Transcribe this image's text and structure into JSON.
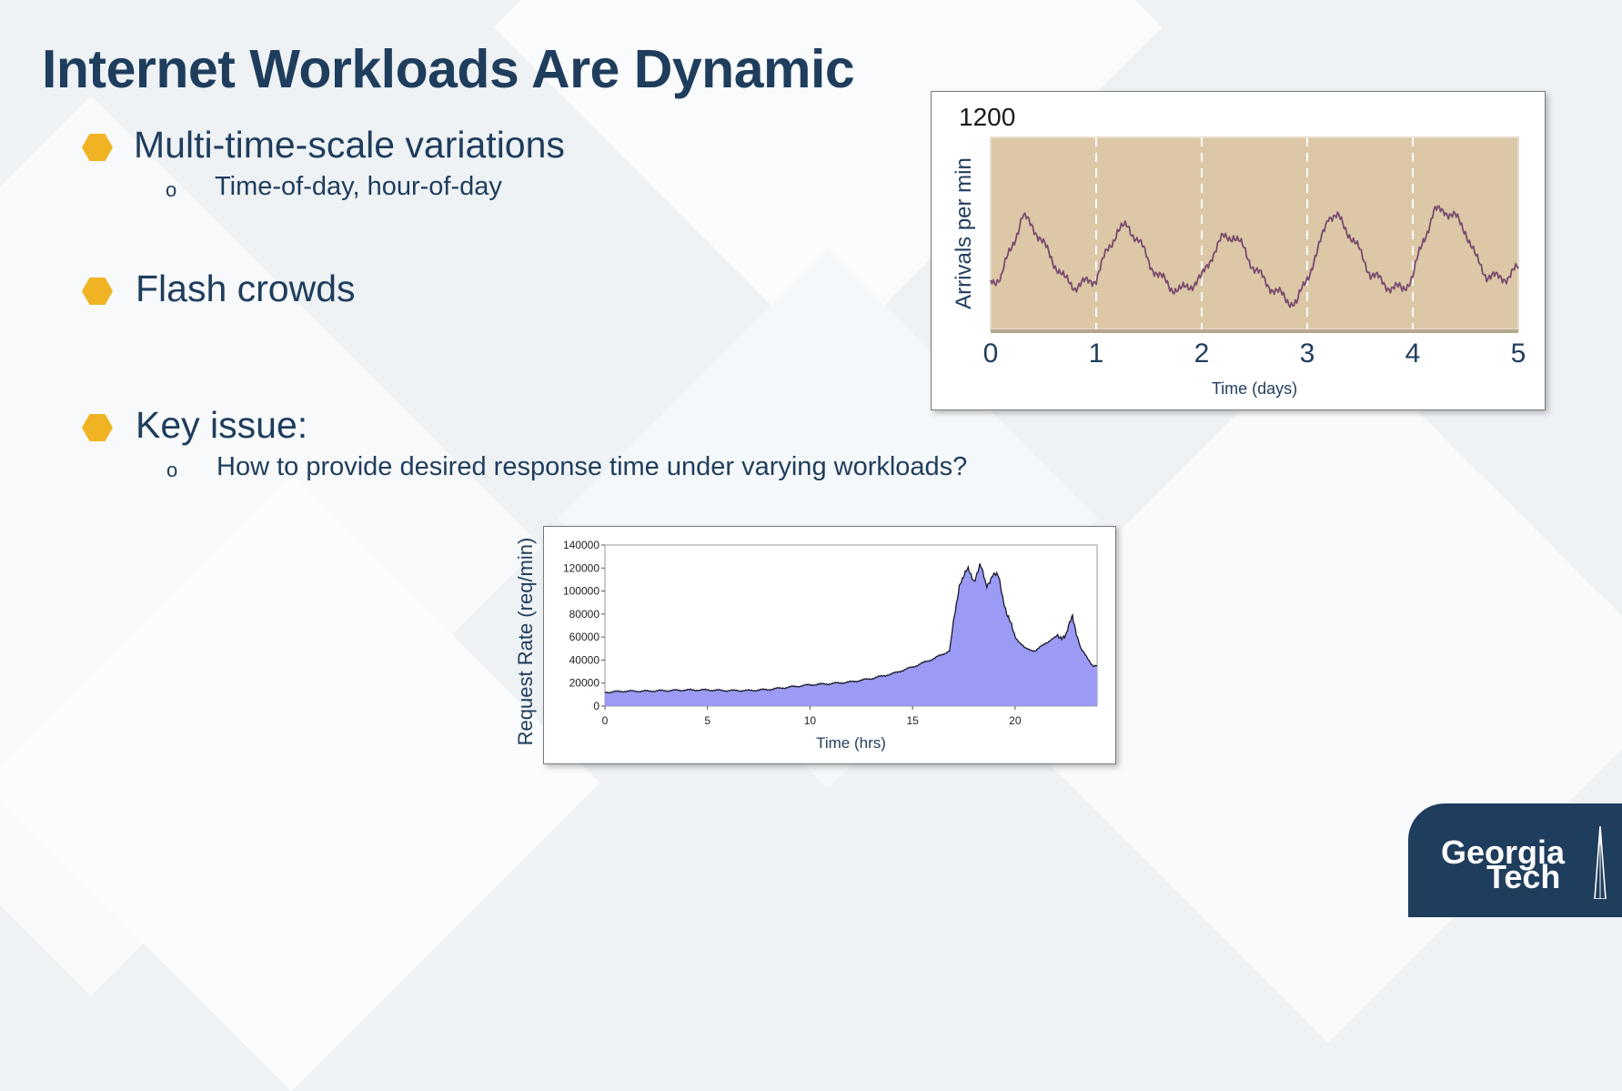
{
  "slide": {
    "title": "Internet Workloads Are Dynamic",
    "bullets": [
      {
        "text": "Multi-time-scale variations",
        "sub": "Time-of-day, hour-of-day"
      },
      {
        "text": "Flash crowds",
        "sub": ""
      },
      {
        "text": "Key issue:",
        "sub": "How to provide desired response time under varying workloads?"
      }
    ],
    "sub_marker": "o",
    "logo": {
      "line1": "Georgia",
      "line2": "Tech"
    }
  },
  "colors": {
    "title": "#1f3d5c",
    "bullet": "#f0b323",
    "chart1_fill": "#dcc7a7",
    "chart1_line": "#7a4a6e",
    "chart2_fill": "#9b9bf5",
    "logo_bg": "#1f3d5c"
  },
  "chart_data": [
    {
      "type": "line",
      "title": "",
      "xlabel": "Time (days)",
      "ylabel": "Arrivals per min",
      "ymax_label": "1200",
      "xlim": [
        0,
        5
      ],
      "ylim": [
        0,
        1200
      ],
      "xticks": [
        "0",
        "1",
        "2",
        "3",
        "4",
        "5"
      ],
      "day_dividers": [
        1,
        2,
        3,
        4
      ],
      "series": [
        {
          "x": [
            0,
            0.1,
            0.2,
            0.3,
            0.4,
            0.5,
            0.6,
            0.7,
            0.8,
            0.9,
            1.0,
            1.1,
            1.2,
            1.3,
            1.4,
            1.5,
            1.6,
            1.7,
            1.8,
            1.9,
            2.0,
            2.1,
            2.2,
            2.3,
            2.4,
            2.5,
            2.6,
            2.7,
            2.8,
            2.9,
            3.0,
            3.1,
            3.2,
            3.3,
            3.4,
            3.5,
            3.6,
            3.7,
            3.8,
            3.9,
            4.0,
            4.1,
            4.2,
            4.3,
            4.4,
            4.5,
            4.6,
            4.7,
            4.8,
            4.9,
            5.0
          ],
          "y": [
            300,
            330,
            520,
            700,
            650,
            530,
            420,
            310,
            270,
            290,
            320,
            480,
            620,
            640,
            560,
            420,
            330,
            270,
            240,
            280,
            320,
            470,
            570,
            590,
            500,
            380,
            300,
            240,
            190,
            160,
            330,
            480,
            720,
            690,
            600,
            480,
            350,
            300,
            260,
            250,
            330,
            560,
            730,
            750,
            700,
            620,
            440,
            340,
            320,
            330,
            380
          ]
        }
      ]
    },
    {
      "type": "area",
      "title": "",
      "xlabel": "Time (hrs)",
      "ylabel": "Request Rate (req/min)",
      "xlim": [
        0,
        24
      ],
      "ylim": [
        0,
        140000
      ],
      "xticks": [
        0,
        5,
        10,
        15,
        20
      ],
      "yticks": [
        0,
        20000,
        40000,
        60000,
        80000,
        100000,
        120000,
        140000
      ],
      "series": [
        {
          "x": [
            0,
            1,
            2,
            3,
            4,
            5,
            6,
            7,
            8,
            9,
            10,
            11,
            12,
            13,
            14,
            15,
            16,
            16.8,
            17.3,
            17.7,
            18.0,
            18.3,
            18.6,
            18.9,
            19.2,
            19.6,
            20.0,
            20.5,
            21.0,
            21.5,
            22.0,
            22.5,
            22.8,
            23.2,
            23.8
          ],
          "y": [
            12000,
            13000,
            13000,
            13500,
            14000,
            14000,
            13500,
            13500,
            14500,
            16500,
            18500,
            19500,
            21000,
            24000,
            28000,
            34000,
            41000,
            48000,
            108000,
            118000,
            110000,
            122000,
            105000,
            114000,
            112000,
            80000,
            60000,
            50000,
            48000,
            55000,
            60000,
            62000,
            78000,
            50000,
            35000
          ]
        }
      ]
    }
  ]
}
